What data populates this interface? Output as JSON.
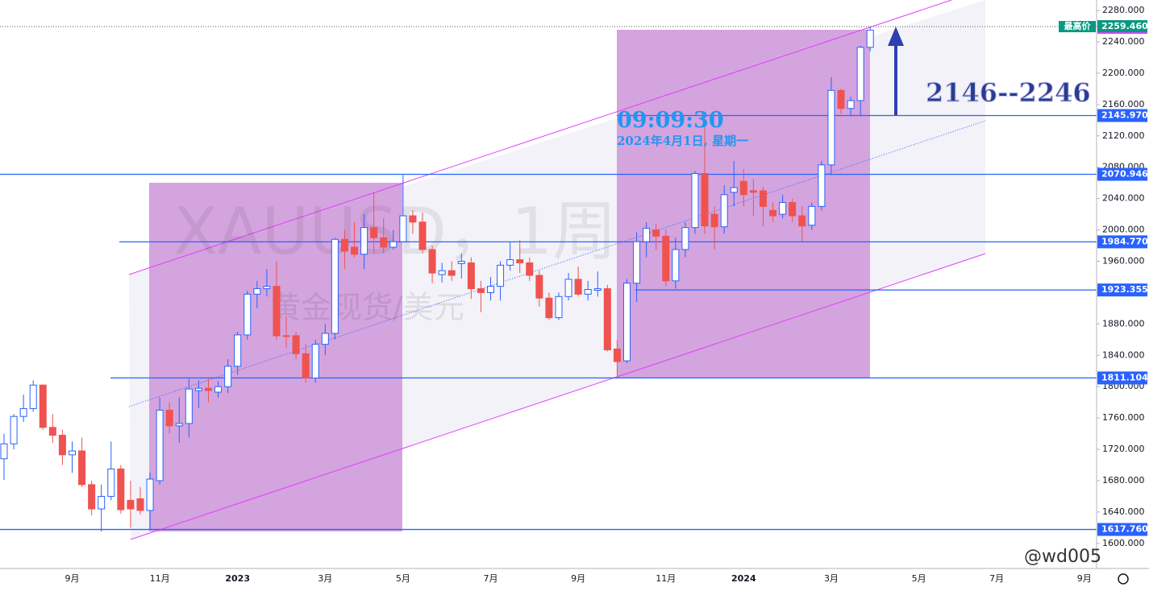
{
  "chart_data": {
    "type": "candlestick",
    "categories": [
      null,
      null,
      null,
      null,
      null,
      null,
      null,
      "9月",
      null,
      null,
      null,
      null,
      null,
      null,
      null,
      null,
      "11月",
      null,
      null,
      null,
      null,
      null,
      null,
      null,
      "2023",
      null,
      null,
      null,
      null,
      null,
      null,
      null,
      null,
      "3月",
      null,
      null,
      null,
      null,
      null,
      null,
      null,
      "5月",
      null,
      null,
      null,
      null,
      null,
      null,
      null,
      null,
      "7月",
      null,
      null,
      null,
      null,
      null,
      null,
      null,
      null,
      "9月",
      null,
      null,
      null,
      null,
      null,
      null,
      null,
      null,
      "11月",
      null,
      null,
      null,
      null,
      null,
      null,
      null,
      "2024",
      null,
      null,
      null,
      null,
      null,
      null,
      null,
      null,
      "3月",
      null,
      null,
      null,
      null,
      null,
      null,
      null,
      null,
      "5月",
      null,
      null,
      null,
      null,
      null,
      null,
      null,
      "7月",
      null,
      null,
      null,
      null,
      null,
      null,
      null,
      null,
      "9月",
      null
    ],
    "open": [
      1708,
      1727,
      1762,
      1772,
      1802,
      1748,
      1738,
      1713,
      1718,
      1675,
      1644,
      1660,
      1695,
      1655,
      1657,
      1642,
      1680,
      1770,
      1750,
      1753,
      1795,
      1798,
      1793,
      1800,
      1826,
      1866,
      1918,
      1925,
      1928,
      1865,
      1865,
      1842,
      1811,
      1854,
      1868,
      1988,
      1978,
      1969,
      2003,
      1990,
      1978,
      1985,
      2018,
      2010,
      1975,
      1943,
      1948,
      1957,
      1958,
      1925,
      1920,
      1928,
      1955,
      1962,
      1958,
      1942,
      1913,
      1888,
      1915,
      1937,
      1918,
      1923,
      1925,
      1848,
      1833,
      1932,
      1985,
      2000,
      1992,
      1935,
      1975,
      2003,
      2072,
      2020,
      2004,
      2048,
      2062,
      2050,
      2050,
      2025,
      2020,
      2035,
      2018,
      2006,
      2030,
      2083,
      2178,
      2155,
      2165,
      2233,
      null,
      null,
      null,
      null,
      null,
      null,
      null,
      null,
      null,
      null,
      null,
      null,
      null,
      null,
      null,
      null,
      null,
      null,
      null,
      null,
      null,
      null,
      null
    ],
    "high": [
      1740,
      1765,
      1790,
      1808,
      1803,
      1765,
      1745,
      1730,
      1735,
      1680,
      1675,
      1730,
      1700,
      1680,
      1672,
      1690,
      1786,
      1780,
      1786,
      1810,
      1808,
      1810,
      1807,
      1835,
      1870,
      1922,
      1935,
      1950,
      1960,
      1890,
      1870,
      1855,
      1860,
      1880,
      1990,
      2000,
      2010,
      2020,
      2048,
      2015,
      2000,
      2070,
      2025,
      2022,
      1980,
      1958,
      1960,
      1970,
      1965,
      1935,
      1940,
      1960,
      1985,
      1987,
      1965,
      1948,
      1920,
      1920,
      1945,
      1953,
      1935,
      1947,
      1930,
      1860,
      1937,
      1997,
      2010,
      2008,
      2000,
      1990,
      2010,
      2075,
      2145,
      2030,
      2057,
      2088,
      2078,
      2065,
      2055,
      2035,
      2045,
      2040,
      2030,
      2035,
      2088,
      2195,
      2180,
      2170,
      2235,
      2259.46,
      null,
      null,
      null,
      null,
      null,
      null,
      null,
      null,
      null,
      null,
      null,
      null,
      null,
      null,
      null,
      null,
      null,
      null,
      null,
      null,
      null,
      null,
      null
    ],
    "low": [
      1681,
      1720,
      1755,
      1768,
      1745,
      1728,
      1700,
      1690,
      1672,
      1636,
      1615,
      1655,
      1638,
      1620,
      1637,
      1617,
      1675,
      1740,
      1728,
      1735,
      1773,
      1780,
      1786,
      1792,
      1815,
      1860,
      1900,
      1915,
      1860,
      1850,
      1835,
      1805,
      1805,
      1840,
      1860,
      1950,
      1965,
      1950,
      1970,
      1970,
      1975,
      1985,
      1995,
      1970,
      1932,
      1933,
      1935,
      1938,
      1912,
      1895,
      1910,
      1910,
      1948,
      1945,
      1935,
      1902,
      1885,
      1885,
      1910,
      1915,
      1910,
      1915,
      1845,
      1810,
      1830,
      1908,
      1965,
      1975,
      1928,
      1925,
      1965,
      1995,
      1995,
      1975,
      1995,
      2030,
      2030,
      2018,
      2005,
      2010,
      2015,
      2010,
      1985,
      2000,
      2025,
      2070,
      2148,
      2145,
      2145,
      2228,
      null,
      null,
      null,
      null,
      null,
      null,
      null,
      null,
      null,
      null,
      null,
      null,
      null,
      null,
      null,
      null,
      null,
      null,
      null,
      null,
      null,
      null,
      null
    ],
    "close": [
      1727,
      1762,
      1772,
      1802,
      1748,
      1738,
      1713,
      1718,
      1675,
      1644,
      1660,
      1695,
      1643,
      1644,
      1642,
      1682,
      1770,
      1750,
      1753,
      1797,
      1798,
      1795,
      1800,
      1826,
      1866,
      1918,
      1925,
      1928,
      1865,
      1864,
      1842,
      1811,
      1854,
      1868,
      1988,
      1973,
      1969,
      2003,
      1990,
      1978,
      1985,
      2018,
      2010,
      1975,
      1945,
      1948,
      1942,
      1960,
      1925,
      1920,
      1928,
      1955,
      1962,
      1958,
      1942,
      1913,
      1888,
      1915,
      1937,
      1918,
      1924,
      1925,
      1847,
      1832,
      1932,
      1985,
      2002,
      1992,
      1935,
      1975,
      2003,
      2072,
      2005,
      2004,
      2045,
      2054,
      2045,
      2048,
      2030,
      2018,
      2035,
      2018,
      2005,
      2030,
      2083,
      2178,
      2155,
      2165,
      2233,
      2255,
      null,
      null,
      null,
      null,
      null,
      null,
      null,
      null,
      null,
      null,
      null,
      null,
      null,
      null,
      null,
      null,
      null,
      null,
      null,
      null,
      null,
      null,
      null
    ],
    "up_color": "#2962ff",
    "down_color": "#ef5350",
    "ylim": [
      1568,
      2293.4
    ],
    "yticks": [
      {
        "value": 1600,
        "label": "1600.000"
      },
      {
        "value": 1640,
        "label": "1640.000"
      },
      {
        "value": 1680,
        "label": "1680.000"
      },
      {
        "value": 1720,
        "label": "1720.000"
      },
      {
        "value": 1760,
        "label": "1760.000"
      },
      {
        "value": 1800,
        "label": "1800.000"
      },
      {
        "value": 1840,
        "label": "1840.000"
      },
      {
        "value": 1880,
        "label": "1880.000"
      },
      {
        "value": 1920,
        "label": "1920.000"
      },
      {
        "value": 1960,
        "label": "1960.000"
      },
      {
        "value": 2000,
        "label": "2000.000"
      },
      {
        "value": 2040,
        "label": "2040.000"
      },
      {
        "value": 2080,
        "label": "2080.000"
      },
      {
        "value": 2120,
        "label": "2120.000"
      },
      {
        "value": 2160,
        "label": "2160.000"
      },
      {
        "value": 2200,
        "label": "2200.000"
      },
      {
        "value": 2240,
        "label": "2240.000"
      },
      {
        "value": 2280,
        "label": "2280.000"
      }
    ],
    "price_levels": [
      {
        "value": 2145.97,
        "label": "2145.970"
      },
      {
        "value": 2070.946,
        "label": "2070.946"
      },
      {
        "value": 1984.77,
        "label": "1984.770"
      },
      {
        "value": 1923.355,
        "label": "1923.355"
      },
      {
        "value": 1811.104,
        "label": "1811.104"
      },
      {
        "value": 1617.76,
        "label": "1617.760"
      }
    ],
    "level_color": "#2962ff",
    "high_label": "最高价",
    "high_price": {
      "value": 2259.46,
      "label": "2259.460"
    },
    "annotations": {
      "time": "09:09:30",
      "date": "2024年4月1日, 星期一",
      "target": "2146--2246"
    },
    "watermark": {
      "symbol": "XAUUSD，1周",
      "name": "黄金现货/美元"
    },
    "signature": "@wd005"
  }
}
